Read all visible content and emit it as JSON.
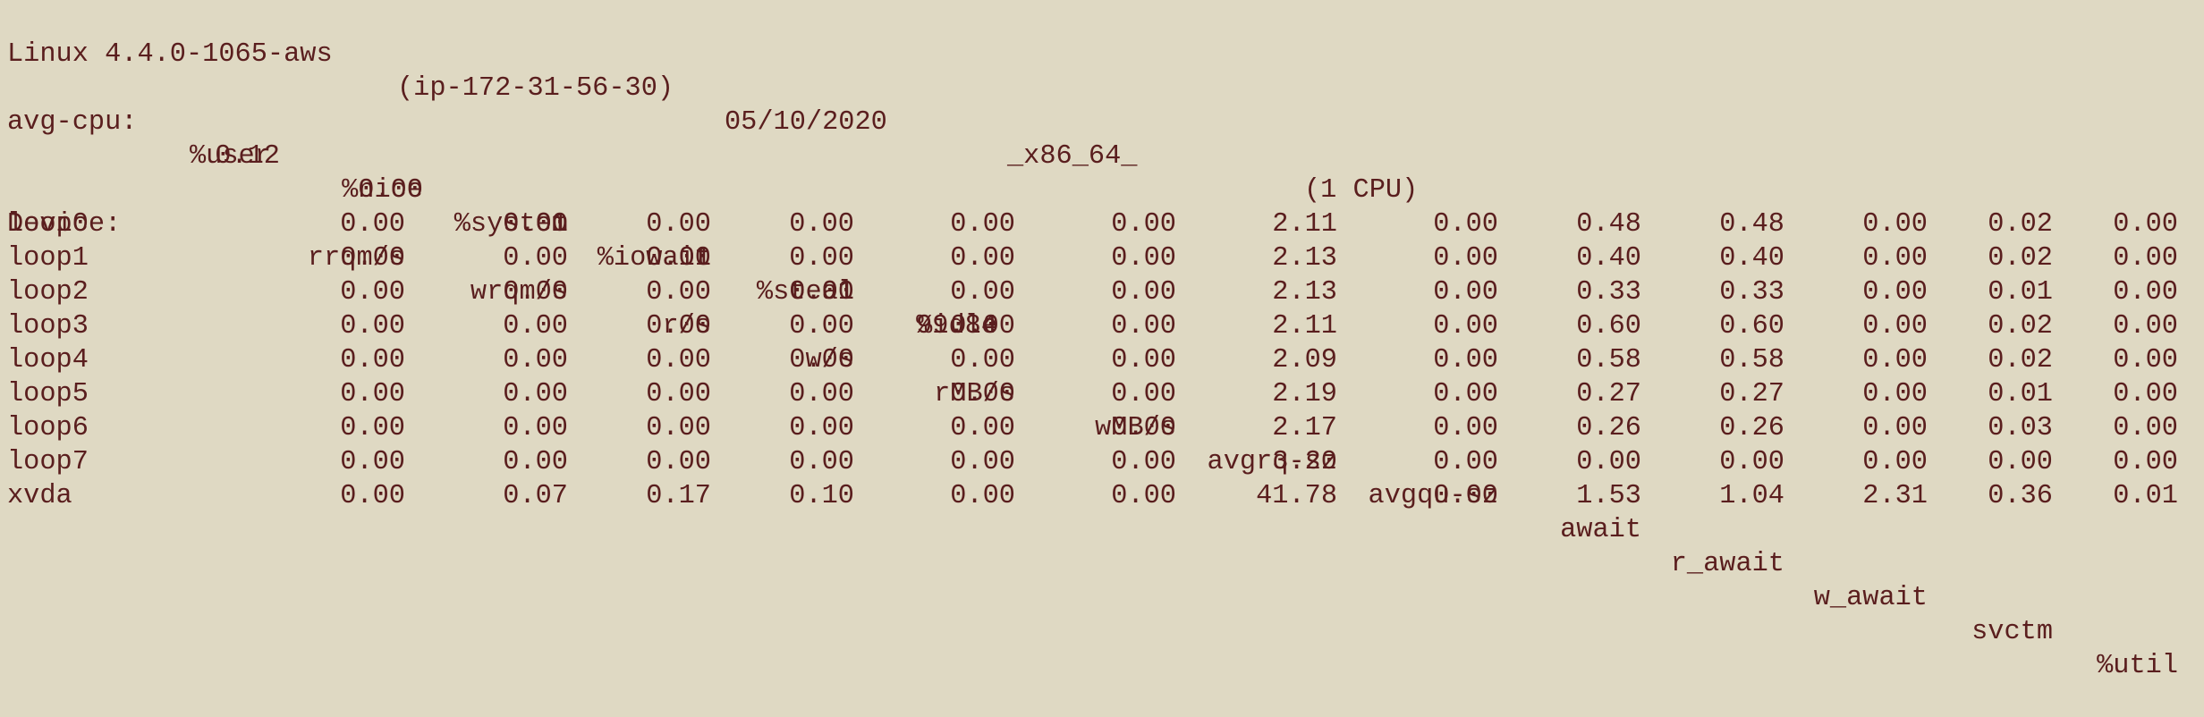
{
  "header": {
    "kernel": "Linux 4.4.0-1065-aws",
    "host": "(ip-172-31-56-30)",
    "date": "05/10/2020",
    "arch": "_x86_64_",
    "cpus": "(1 CPU)"
  },
  "avg_cpu": {
    "label": "avg-cpu:",
    "columns": [
      "%user",
      "%nice",
      "%system",
      "%iowait",
      "%steal",
      "%idle"
    ],
    "values": [
      "0.12",
      "0.00",
      "0.01",
      "0.01",
      "0.01",
      "99.84"
    ]
  },
  "devices": {
    "columns": [
      "Device:",
      "rrqm/s",
      "wrqm/s",
      "r/s",
      "w/s",
      "rMB/s",
      "wMB/s",
      "avgrq-sz",
      "avgqu-sz",
      "await",
      "r_await",
      "w_await",
      "svctm",
      "%util"
    ],
    "rows": [
      [
        "loop0",
        "0.00",
        "0.00",
        "0.00",
        "0.00",
        "0.00",
        "0.00",
        "2.11",
        "0.00",
        "0.48",
        "0.48",
        "0.00",
        "0.02",
        "0.00"
      ],
      [
        "loop1",
        "0.00",
        "0.00",
        "0.00",
        "0.00",
        "0.00",
        "0.00",
        "2.13",
        "0.00",
        "0.40",
        "0.40",
        "0.00",
        "0.02",
        "0.00"
      ],
      [
        "loop2",
        "0.00",
        "0.00",
        "0.00",
        "0.00",
        "0.00",
        "0.00",
        "2.13",
        "0.00",
        "0.33",
        "0.33",
        "0.00",
        "0.01",
        "0.00"
      ],
      [
        "loop3",
        "0.00",
        "0.00",
        "0.00",
        "0.00",
        "0.00",
        "0.00",
        "2.11",
        "0.00",
        "0.60",
        "0.60",
        "0.00",
        "0.02",
        "0.00"
      ],
      [
        "loop4",
        "0.00",
        "0.00",
        "0.00",
        "0.00",
        "0.00",
        "0.00",
        "2.09",
        "0.00",
        "0.58",
        "0.58",
        "0.00",
        "0.02",
        "0.00"
      ],
      [
        "loop5",
        "0.00",
        "0.00",
        "0.00",
        "0.00",
        "0.00",
        "0.00",
        "2.19",
        "0.00",
        "0.27",
        "0.27",
        "0.00",
        "0.01",
        "0.00"
      ],
      [
        "loop6",
        "0.00",
        "0.00",
        "0.00",
        "0.00",
        "0.00",
        "0.00",
        "2.17",
        "0.00",
        "0.26",
        "0.26",
        "0.00",
        "0.03",
        "0.00"
      ],
      [
        "loop7",
        "0.00",
        "0.00",
        "0.00",
        "0.00",
        "0.00",
        "0.00",
        "3.20",
        "0.00",
        "0.00",
        "0.00",
        "0.00",
        "0.00",
        "0.00"
      ],
      [
        "xvda",
        "0.00",
        "0.07",
        "0.17",
        "0.10",
        "0.00",
        "0.00",
        "41.78",
        "0.00",
        "1.53",
        "1.04",
        "2.31",
        "0.36",
        "0.01"
      ]
    ]
  }
}
